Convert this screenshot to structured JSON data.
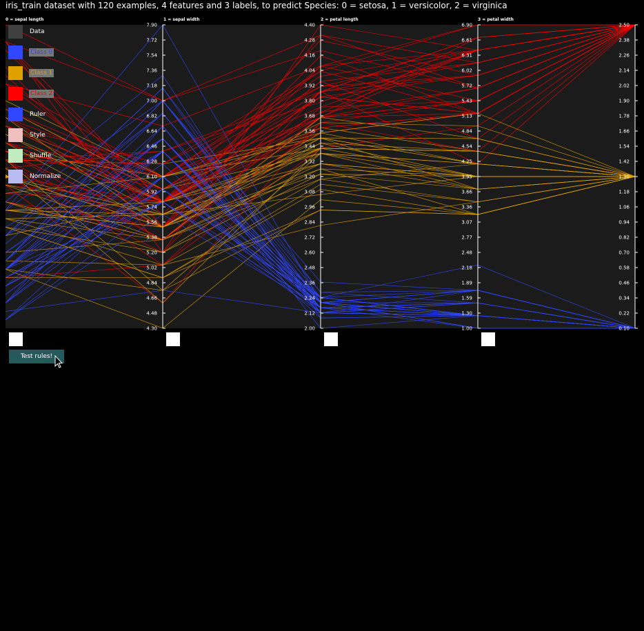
{
  "title": "iris_train dataset with 120 examples, 4 features and 3 labels, to predict Species: 0 = setosa, 1 = versicolor, 2 = virginica",
  "legend": {
    "items": [
      {
        "label": "Data",
        "color": "#404040",
        "highlight": false
      },
      {
        "label": "Class 0",
        "color": "#3047ff",
        "highlight": true
      },
      {
        "label": "Class 1",
        "color": "#e0a000",
        "highlight": true
      },
      {
        "label": "Class 2",
        "color": "#ff0000",
        "highlight": true
      },
      {
        "label": "Ruler",
        "color": "#3047ff",
        "highlight": false
      },
      {
        "label": "Style",
        "color": "#f0c0c0",
        "highlight": false
      },
      {
        "label": "Shuffle",
        "color": "#c0ecc0",
        "highlight": false
      },
      {
        "label": "Normalize",
        "color": "#b8bcf0",
        "highlight": false
      }
    ]
  },
  "button": {
    "label": "Test rules!"
  },
  "colors": {
    "class0": "#3047ff",
    "class1": "#e0a000",
    "class2": "#ff0000",
    "axis": "#ffffff",
    "panel": "#1b1b1b"
  },
  "chart_data": {
    "type": "parallel-coordinates",
    "axes": [
      {
        "label": "0 = sepal length",
        "min": 4.3,
        "max": 7.9,
        "ticks": [
          "7.90",
          "7.72",
          "7.54",
          "7.36",
          "7.18",
          "7.00",
          "6.82",
          "6.64",
          "6.46",
          "6.28",
          "6.10",
          "5.92",
          "5.74",
          "5.56",
          "5.38",
          "5.20",
          "5.02",
          "4.84",
          "4.66",
          "4.48",
          "4.30"
        ]
      },
      {
        "label": "1 = sepal width",
        "min": 2.0,
        "max": 4.4,
        "ticks": [
          "4.40",
          "4.28",
          "4.16",
          "4.04",
          "3.92",
          "3.80",
          "3.68",
          "3.56",
          "3.44",
          "3.32",
          "3.20",
          "3.08",
          "2.96",
          "2.84",
          "2.72",
          "2.60",
          "2.48",
          "2.36",
          "2.24",
          "2.12",
          "2.00"
        ]
      },
      {
        "label": "2 = petal length",
        "min": 1.0,
        "max": 6.9,
        "ticks": [
          "6.90",
          "6.61",
          "6.31",
          "6.02",
          "5.72",
          "5.43",
          "5.13",
          "4.84",
          "4.54",
          "4.25",
          "3.95",
          "3.66",
          "3.36",
          "3.07",
          "2.77",
          "2.48",
          "2.18",
          "1.89",
          "1.59",
          "1.30",
          "1.00"
        ]
      },
      {
        "label": "3 = petal width",
        "min": 0.1,
        "max": 2.5,
        "ticks": [
          "2.50",
          "2.38",
          "2.26",
          "2.14",
          "2.02",
          "1.90",
          "1.78",
          "1.66",
          "1.54",
          "1.42",
          "1.30",
          "1.18",
          "1.06",
          "0.94",
          "0.82",
          "0.70",
          "0.58",
          "0.46",
          "0.34",
          "0.22",
          "0.10"
        ]
      }
    ],
    "labels_axis": {
      "min": 0,
      "max": 2
    },
    "rows": [
      [
        6.4,
        2.8,
        5.6,
        2.2,
        2
      ],
      [
        5.0,
        2.3,
        3.3,
        1.0,
        1
      ],
      [
        4.9,
        2.5,
        4.5,
        1.7,
        2
      ],
      [
        4.9,
        3.1,
        1.5,
        0.1,
        0
      ],
      [
        5.7,
        3.8,
        1.7,
        0.3,
        0
      ],
      [
        4.4,
        3.2,
        1.3,
        0.2,
        0
      ],
      [
        5.4,
        3.4,
        1.5,
        0.4,
        0
      ],
      [
        6.9,
        3.1,
        5.1,
        2.3,
        2
      ],
      [
        6.7,
        3.1,
        4.4,
        1.4,
        1
      ],
      [
        5.1,
        3.7,
        1.5,
        0.4,
        0
      ],
      [
        5.2,
        2.7,
        3.9,
        1.4,
        1
      ],
      [
        6.9,
        3.1,
        4.9,
        1.5,
        1
      ],
      [
        5.8,
        4.0,
        1.2,
        0.2,
        0
      ],
      [
        5.4,
        3.9,
        1.7,
        0.4,
        0
      ],
      [
        7.7,
        3.8,
        6.7,
        2.2,
        2
      ],
      [
        6.3,
        3.3,
        4.7,
        1.6,
        1
      ],
      [
        6.8,
        3.2,
        5.9,
        2.3,
        2
      ],
      [
        7.6,
        3.0,
        6.6,
        2.1,
        2
      ],
      [
        6.4,
        3.2,
        5.3,
        2.3,
        2
      ],
      [
        5.7,
        4.4,
        1.5,
        0.4,
        0
      ],
      [
        6.7,
        3.3,
        5.7,
        2.1,
        2
      ],
      [
        6.4,
        2.8,
        5.6,
        2.1,
        2
      ],
      [
        5.4,
        3.9,
        1.3,
        0.4,
        0
      ],
      [
        6.1,
        2.6,
        5.6,
        1.4,
        2
      ],
      [
        7.2,
        3.0,
        5.8,
        1.6,
        2
      ],
      [
        5.2,
        3.5,
        1.5,
        0.2,
        0
      ],
      [
        5.8,
        2.6,
        4.0,
        1.2,
        1
      ],
      [
        5.9,
        3.0,
        5.1,
        1.8,
        2
      ],
      [
        5.4,
        3.0,
        4.5,
        1.5,
        1
      ],
      [
        6.7,
        3.0,
        5.0,
        1.7,
        1
      ],
      [
        6.3,
        2.3,
        4.4,
        1.3,
        1
      ],
      [
        5.1,
        2.5,
        3.0,
        1.1,
        1
      ],
      [
        6.4,
        3.2,
        4.5,
        1.5,
        1
      ],
      [
        6.8,
        3.0,
        5.5,
        2.1,
        2
      ],
      [
        6.2,
        2.8,
        4.8,
        1.8,
        2
      ],
      [
        6.9,
        3.2,
        5.7,
        2.3,
        2
      ],
      [
        6.5,
        3.2,
        5.1,
        2.0,
        2
      ],
      [
        5.8,
        2.8,
        5.1,
        2.4,
        2
      ],
      [
        5.1,
        3.8,
        1.5,
        0.3,
        0
      ],
      [
        4.8,
        3.0,
        1.4,
        0.3,
        0
      ],
      [
        7.9,
        3.8,
        6.4,
        2.0,
        2
      ],
      [
        5.8,
        2.7,
        5.1,
        1.9,
        2
      ],
      [
        6.7,
        3.0,
        5.2,
        2.3,
        2
      ],
      [
        5.1,
        3.8,
        1.9,
        0.4,
        0
      ],
      [
        4.7,
        3.2,
        1.6,
        0.2,
        0
      ],
      [
        6.0,
        2.2,
        5.0,
        1.5,
        2
      ],
      [
        4.8,
        3.4,
        1.6,
        0.2,
        0
      ],
      [
        7.7,
        2.6,
        6.9,
        2.3,
        2
      ],
      [
        4.6,
        3.6,
        1.0,
        0.2,
        0
      ],
      [
        7.2,
        3.2,
        6.0,
        1.8,
        2
      ],
      [
        5.0,
        3.3,
        1.4,
        0.2,
        0
      ],
      [
        6.6,
        3.0,
        4.4,
        1.4,
        1
      ],
      [
        6.1,
        2.8,
        4.0,
        1.3,
        1
      ],
      [
        5.0,
        3.2,
        1.2,
        0.2,
        0
      ],
      [
        7.0,
        3.2,
        4.7,
        1.4,
        1
      ],
      [
        6.0,
        3.0,
        4.8,
        1.8,
        2
      ],
      [
        7.4,
        2.8,
        6.1,
        1.9,
        2
      ],
      [
        5.8,
        2.7,
        5.1,
        1.9,
        2
      ],
      [
        6.2,
        3.4,
        5.4,
        2.3,
        2
      ],
      [
        5.0,
        2.0,
        3.5,
        1.0,
        1
      ],
      [
        5.6,
        2.5,
        3.9,
        1.1,
        1
      ],
      [
        6.7,
        3.1,
        5.6,
        2.4,
        2
      ],
      [
        6.3,
        2.5,
        5.0,
        1.9,
        2
      ],
      [
        6.4,
        3.1,
        5.5,
        1.8,
        2
      ],
      [
        6.2,
        2.2,
        4.5,
        1.5,
        1
      ],
      [
        7.3,
        2.9,
        6.3,
        1.8,
        2
      ],
      [
        4.4,
        3.0,
        1.3,
        0.2,
        0
      ],
      [
        7.2,
        3.6,
        6.1,
        2.5,
        2
      ],
      [
        6.5,
        3.0,
        5.5,
        1.8,
        2
      ],
      [
        5.0,
        3.4,
        1.5,
        0.2,
        0
      ],
      [
        4.7,
        3.2,
        1.3,
        0.2,
        0
      ],
      [
        6.6,
        2.9,
        4.6,
        1.3,
        1
      ],
      [
        5.5,
        3.5,
        1.3,
        0.2,
        0
      ],
      [
        7.7,
        3.0,
        6.1,
        2.3,
        2
      ],
      [
        6.1,
        3.0,
        4.9,
        1.8,
        2
      ],
      [
        4.9,
        3.1,
        1.5,
        0.1,
        0
      ],
      [
        5.5,
        2.4,
        3.8,
        1.1,
        1
      ],
      [
        5.7,
        2.9,
        4.2,
        1.3,
        1
      ],
      [
        6.0,
        2.9,
        4.5,
        1.5,
        1
      ],
      [
        6.4,
        2.7,
        5.3,
        1.9,
        2
      ],
      [
        5.4,
        3.7,
        1.5,
        0.2,
        0
      ],
      [
        6.1,
        2.9,
        4.7,
        1.4,
        1
      ],
      [
        6.5,
        2.8,
        4.6,
        1.5,
        1
      ],
      [
        5.6,
        2.7,
        4.2,
        1.3,
        1
      ],
      [
        6.3,
        3.4,
        5.6,
        2.4,
        2
      ],
      [
        4.9,
        3.1,
        1.5,
        0.1,
        0
      ],
      [
        6.8,
        2.8,
        4.8,
        1.4,
        1
      ],
      [
        5.7,
        2.8,
        4.5,
        1.3,
        1
      ],
      [
        6.0,
        2.7,
        5.1,
        1.6,
        1
      ],
      [
        5.0,
        3.5,
        1.3,
        0.3,
        0
      ],
      [
        6.5,
        3.0,
        5.2,
        2.0,
        2
      ],
      [
        6.1,
        2.8,
        4.7,
        1.2,
        1
      ],
      [
        5.1,
        3.5,
        1.4,
        0.3,
        0
      ],
      [
        4.6,
        3.1,
        1.5,
        0.2,
        0
      ],
      [
        6.5,
        3.0,
        5.8,
        2.2,
        2
      ],
      [
        4.6,
        3.4,
        1.4,
        0.3,
        0
      ],
      [
        4.6,
        3.2,
        1.4,
        0.2,
        0
      ],
      [
        7.7,
        2.8,
        6.7,
        2.0,
        2
      ],
      [
        5.9,
        3.2,
        4.8,
        1.8,
        1
      ],
      [
        5.1,
        3.8,
        1.6,
        0.2,
        0
      ],
      [
        4.9,
        3.0,
        1.4,
        0.2,
        0
      ],
      [
        4.9,
        2.4,
        3.3,
        1.0,
        1
      ],
      [
        4.5,
        2.3,
        1.3,
        0.3,
        0
      ],
      [
        5.8,
        2.7,
        4.1,
        1.0,
        1
      ],
      [
        5.0,
        3.4,
        1.6,
        0.4,
        0
      ],
      [
        5.2,
        3.4,
        1.4,
        0.2,
        0
      ],
      [
        5.3,
        3.7,
        1.5,
        0.2,
        0
      ],
      [
        5.0,
        3.6,
        1.4,
        0.2,
        0
      ],
      [
        5.6,
        2.9,
        3.6,
        1.3,
        1
      ],
      [
        4.8,
        3.1,
        1.6,
        0.2,
        0
      ],
      [
        6.3,
        2.7,
        4.9,
        1.8,
        2
      ],
      [
        5.7,
        2.8,
        4.1,
        1.3,
        1
      ],
      [
        5.0,
        3.0,
        1.6,
        0.2,
        0
      ],
      [
        6.3,
        3.3,
        6.0,
        2.5,
        2
      ],
      [
        5.0,
        3.5,
        1.6,
        0.6,
        0
      ],
      [
        5.5,
        2.6,
        4.4,
        1.2,
        1
      ],
      [
        5.7,
        3.0,
        4.2,
        1.2,
        1
      ],
      [
        4.4,
        2.9,
        1.4,
        0.2,
        0
      ],
      [
        4.8,
        3.0,
        1.4,
        0.1,
        0
      ],
      [
        5.5,
        2.4,
        3.7,
        1.0,
        1
      ]
    ]
  }
}
